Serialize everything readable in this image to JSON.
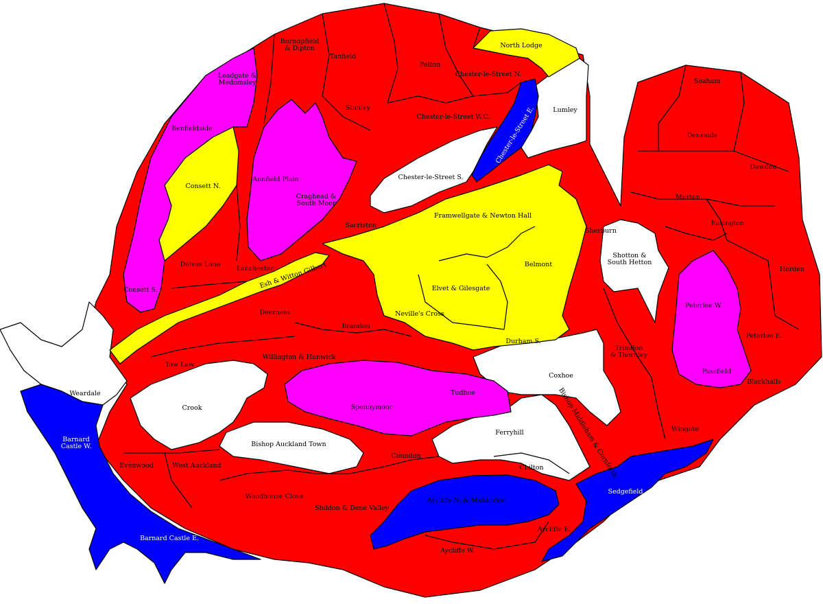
{
  "map": {
    "colors": {
      "red": "#ff0000",
      "blue": "#0000ff",
      "yellow": "#ffff00",
      "magenta": "#ff00ff",
      "white": "#ffffff"
    },
    "labels": {
      "burnopfield_line1": "Burnopfield",
      "burnopfield_line2": "& Dipton",
      "tanfield": "Tanfield",
      "pelton": "Pelton",
      "north_lodge": "North Lodge",
      "chester_le_street_n": "Chester-le-Street N.",
      "leadgate_line1": "Leadgate &",
      "leadgate_line2": "Medomsley",
      "stanley": "Stanley",
      "chester_le_street_wc": "Chester-le-Street W.C.",
      "chester_le_street_e": "Chester-le-Street E.",
      "lumley": "Lumley",
      "seaham": "Seaham",
      "benfieldside": "Benfieldside",
      "deneside": "Deneside",
      "consett_n": "Consett N.",
      "annfield_plain": "Annfield Plain",
      "craghead_line1": "Craghead &",
      "craghead_line2": "South Moor",
      "chester_le_street_s": "Chester-le-Street S.",
      "dawdon": "Dawdon",
      "murton": "Murton",
      "framwellgate": "Framwellgate & Newton Hall",
      "easington": "Easington",
      "sacriston": "Sacriston",
      "sherburn": "Sherburn",
      "shotton_line1": "Shotton &",
      "shotton_line2": "South Hetton",
      "delves_lane": "Delves Lane",
      "lanchester": "Lanchester",
      "belmont": "Belmont",
      "horden": "Horden",
      "esh_witton_gilbert": "Esh & Witton Gilbert",
      "consett_s": "Consett S.",
      "elvet_gilesgate": "Elvet & Gilesgate",
      "peterlee_w": "Peterlee W.",
      "deerness": "Deerness",
      "nevilles_cross": "Neville's Cross",
      "brandon": "Brandon",
      "peterlee_e": "Peterlee E.",
      "durham_s": "Durham S.",
      "trimdon_line1": "Trimdon",
      "trimdon_line2": "& Thornley",
      "tow_law": "Tow Law",
      "willington_hunwick": "Willington & Hunwick",
      "passfield": "Passfield",
      "coxhoe": "Coxhoe",
      "blackhalls": "Blackhalls",
      "weardale": "Weardale",
      "tudhoe": "Tudhoe",
      "crook": "Crook",
      "spennymoor": "Spennymoor",
      "barnard_castle_w_line1": "Barnard",
      "barnard_castle_w_line2": "Castle W.",
      "ferryhill": "Ferryhill",
      "wingate": "Wingate",
      "bishop_auckland_town": "Bishop Auckland Town",
      "bishop_middleham": "Bishop Middleham & Cornforth",
      "coundon": "Coundon",
      "evenwood": "Evenwood",
      "west_auckland": "West Auckland",
      "chilton": "Chilton",
      "sedgefield": "Sedgefield",
      "woodhouse_close": "Woodhouse Close",
      "aycliffe_n_middridge": "Aycliffe N. & Middridge",
      "shildon_dene_valley": "Shildon & Dene Valley",
      "aycliffe_e": "Aycliffe E.",
      "barnard_castle_e": "Barnard Castle E.",
      "aycliffe_w": "Aycliffe W."
    }
  }
}
